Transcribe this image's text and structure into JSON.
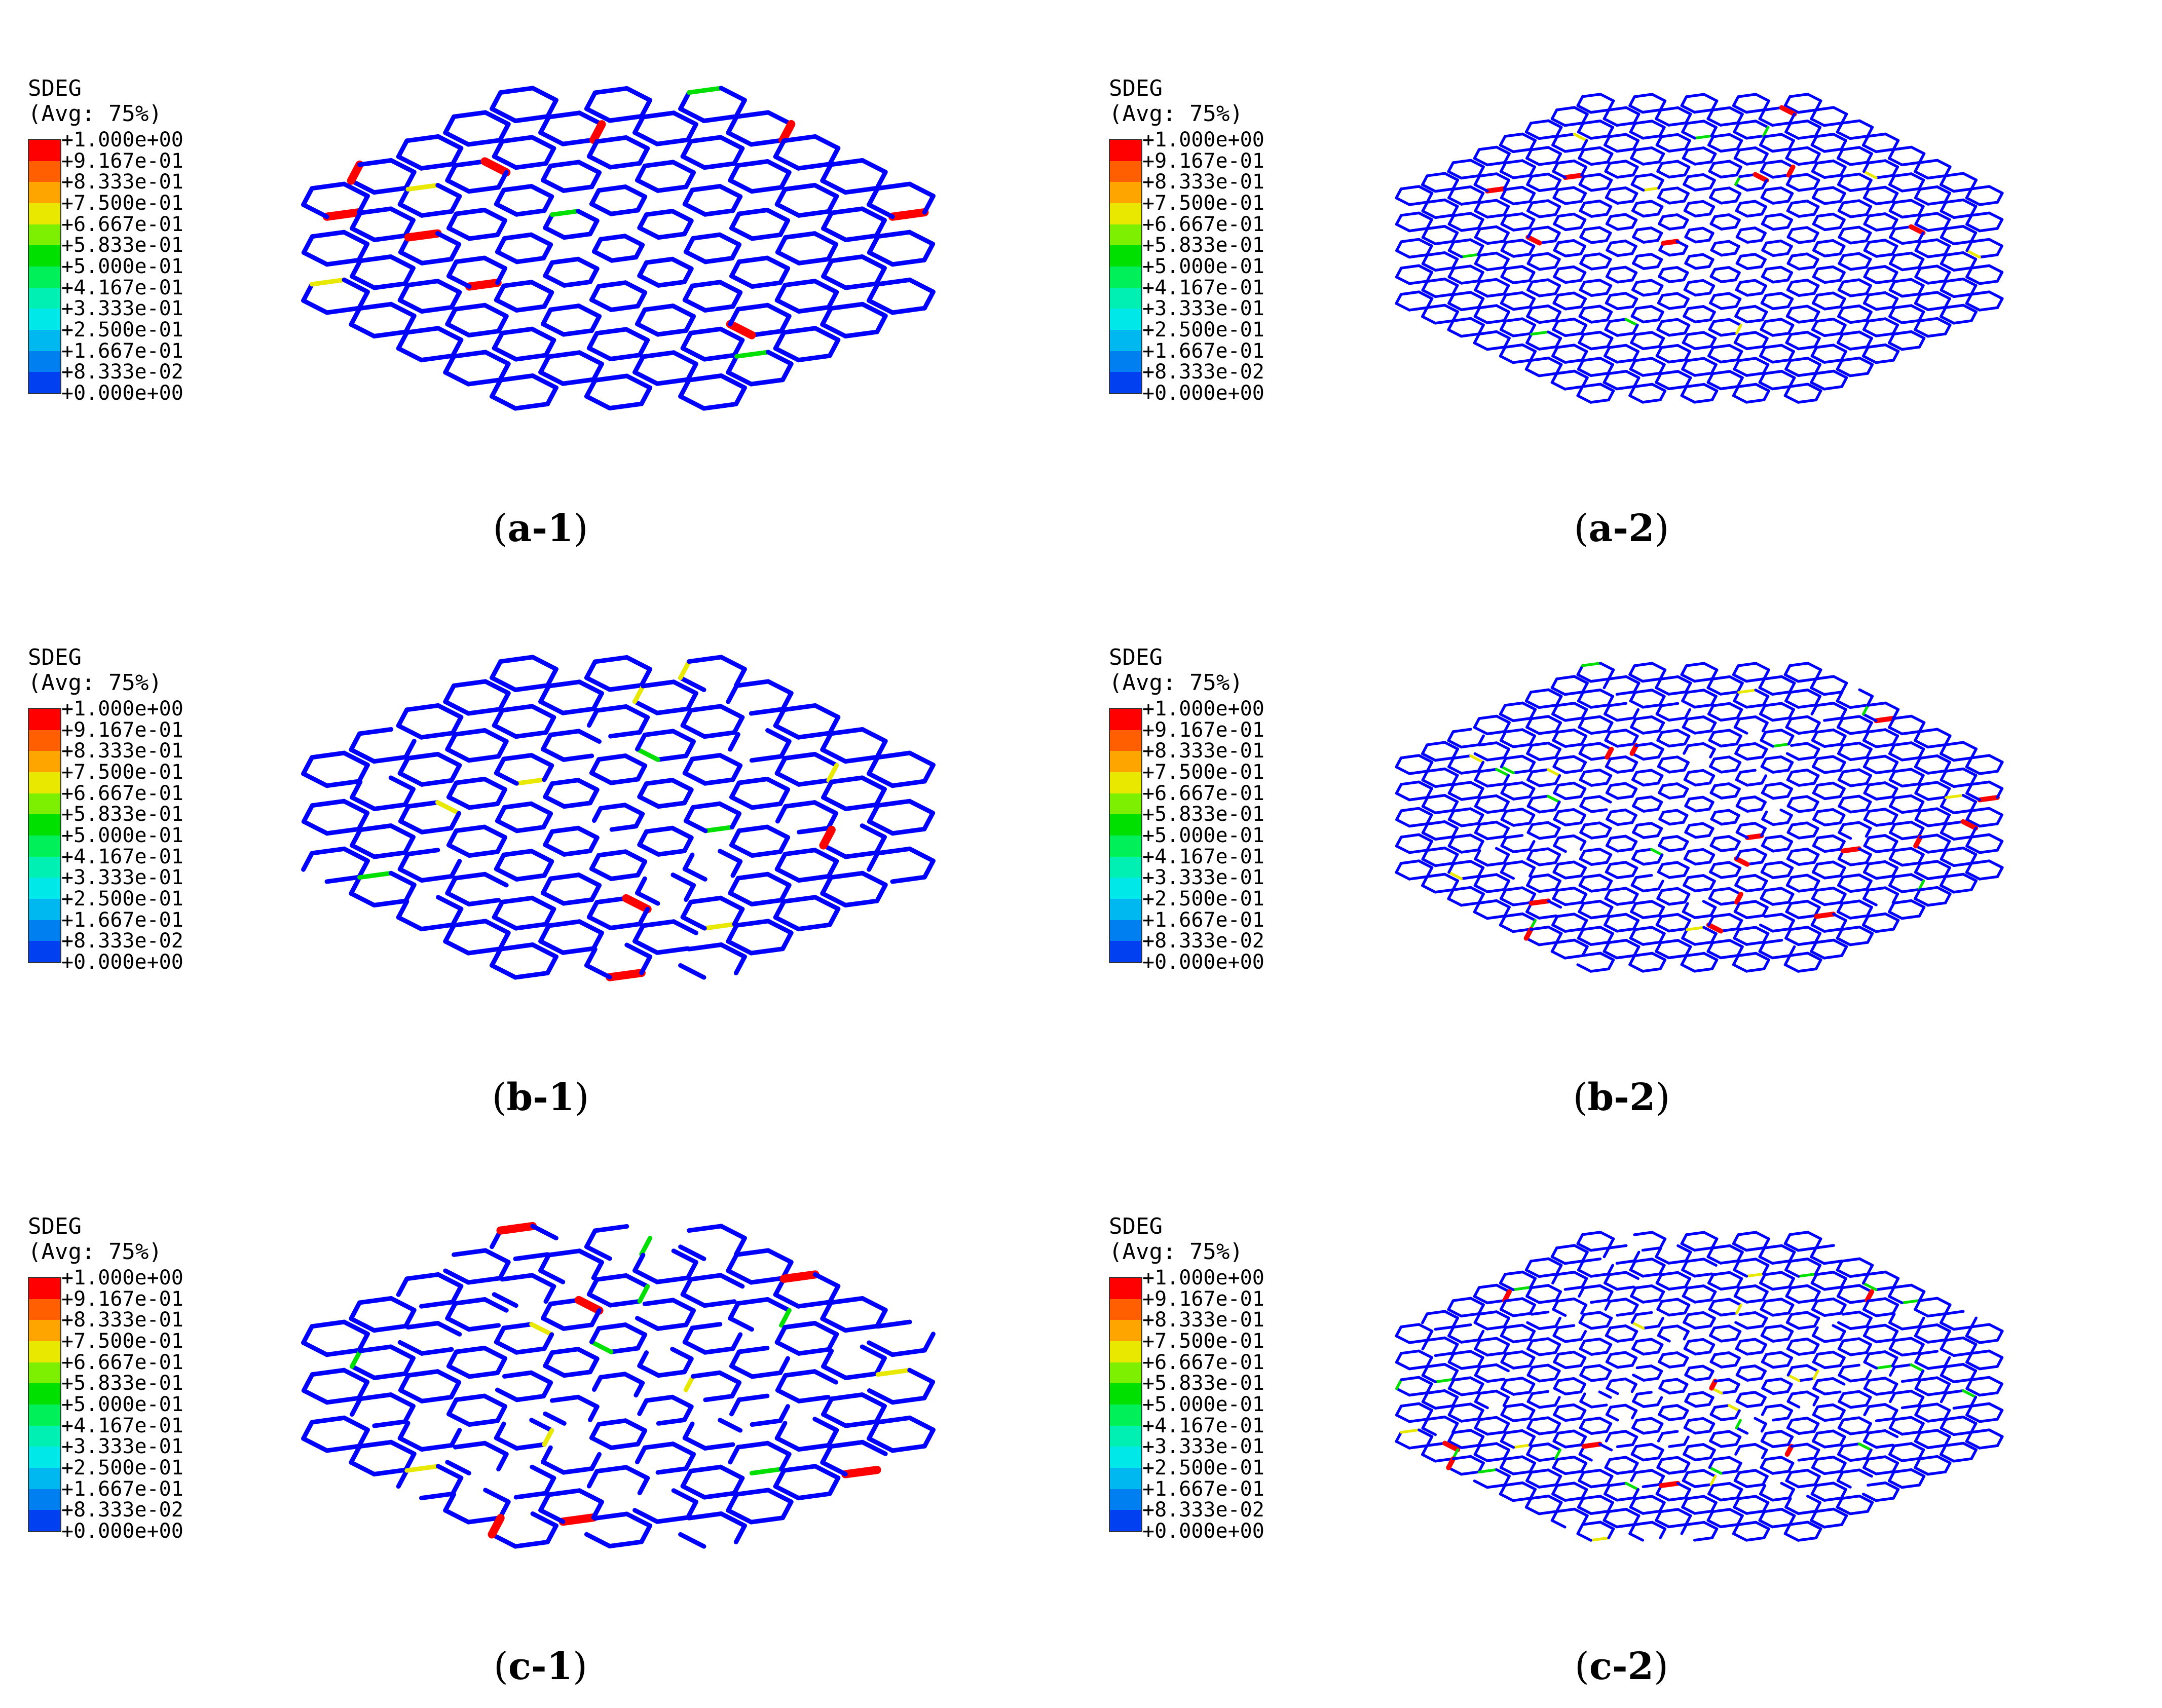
{
  "legend": {
    "title": "SDEG",
    "subtitle": "(Avg: 75%)",
    "labels": [
      "+1.000e+00",
      "+9.167e-01",
      "+8.333e-01",
      "+7.500e-01",
      "+6.667e-01",
      "+5.833e-01",
      "+5.000e-01",
      "+4.167e-01",
      "+3.333e-01",
      "+2.500e-01",
      "+1.667e-01",
      "+8.333e-02",
      "+0.000e+00"
    ],
    "colors": [
      "#ff0000",
      "#ff5f00",
      "#ffa500",
      "#e8e800",
      "#7cf000",
      "#00e000",
      "#00f05a",
      "#00f0b4",
      "#00e8e8",
      "#00b8f0",
      "#0080f0",
      "#0040f0",
      "#0000ff"
    ]
  },
  "panels": [
    {
      "label": "a-1",
      "scale": 1.0,
      "damage": 0.45,
      "gaps": 0.0
    },
    {
      "label": "a-2",
      "scale": 0.55,
      "damage": 0.2,
      "gaps": 0.0
    },
    {
      "label": "b-1",
      "scale": 1.0,
      "damage": 0.55,
      "gaps": 0.15
    },
    {
      "label": "b-2",
      "scale": 0.55,
      "damage": 0.3,
      "gaps": 0.05
    },
    {
      "label": "c-1",
      "scale": 1.0,
      "damage": 0.6,
      "gaps": 0.3
    },
    {
      "label": "c-2",
      "scale": 0.55,
      "damage": 0.35,
      "gaps": 0.12
    }
  ],
  "mesh_colors": {
    "undamaged": "#0000ff",
    "failed": "#ff0000"
  }
}
